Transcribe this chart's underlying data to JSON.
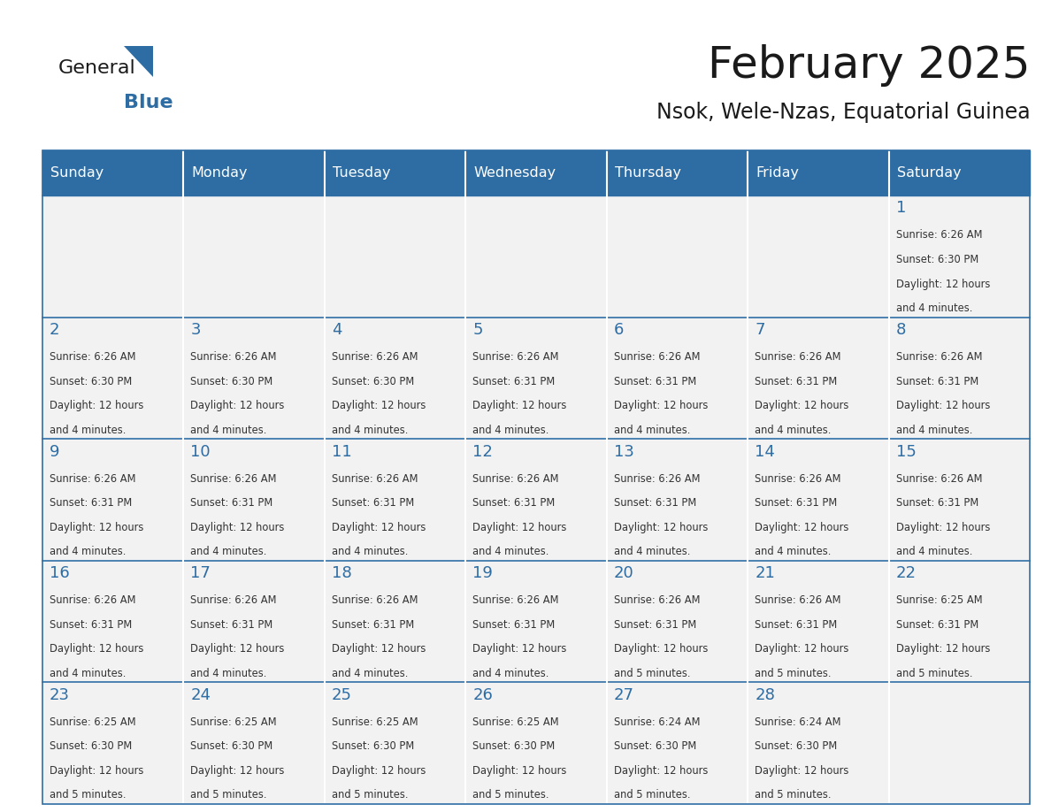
{
  "title": "February 2025",
  "subtitle": "Nsok, Wele-Nzas, Equatorial Guinea",
  "header_bg": "#2E6DA4",
  "header_text": "#FFFFFF",
  "cell_bg_light": "#F2F2F2",
  "cell_bg_white": "#FFFFFF",
  "day_number_color": "#2E6DA4",
  "text_color": "#333333",
  "line_color": "#2E6DA4",
  "days_of_week": [
    "Sunday",
    "Monday",
    "Tuesday",
    "Wednesday",
    "Thursday",
    "Friday",
    "Saturday"
  ],
  "calendar_data": [
    [
      null,
      null,
      null,
      null,
      null,
      null,
      1
    ],
    [
      2,
      3,
      4,
      5,
      6,
      7,
      8
    ],
    [
      9,
      10,
      11,
      12,
      13,
      14,
      15
    ],
    [
      16,
      17,
      18,
      19,
      20,
      21,
      22
    ],
    [
      23,
      24,
      25,
      26,
      27,
      28,
      null
    ]
  ],
  "cell_info": {
    "1": {
      "sunrise": "6:26 AM",
      "sunset": "6:30 PM",
      "daylight": "12 hours and 4 minutes."
    },
    "2": {
      "sunrise": "6:26 AM",
      "sunset": "6:30 PM",
      "daylight": "12 hours and 4 minutes."
    },
    "3": {
      "sunrise": "6:26 AM",
      "sunset": "6:30 PM",
      "daylight": "12 hours and 4 minutes."
    },
    "4": {
      "sunrise": "6:26 AM",
      "sunset": "6:30 PM",
      "daylight": "12 hours and 4 minutes."
    },
    "5": {
      "sunrise": "6:26 AM",
      "sunset": "6:31 PM",
      "daylight": "12 hours and 4 minutes."
    },
    "6": {
      "sunrise": "6:26 AM",
      "sunset": "6:31 PM",
      "daylight": "12 hours and 4 minutes."
    },
    "7": {
      "sunrise": "6:26 AM",
      "sunset": "6:31 PM",
      "daylight": "12 hours and 4 minutes."
    },
    "8": {
      "sunrise": "6:26 AM",
      "sunset": "6:31 PM",
      "daylight": "12 hours and 4 minutes."
    },
    "9": {
      "sunrise": "6:26 AM",
      "sunset": "6:31 PM",
      "daylight": "12 hours and 4 minutes."
    },
    "10": {
      "sunrise": "6:26 AM",
      "sunset": "6:31 PM",
      "daylight": "12 hours and 4 minutes."
    },
    "11": {
      "sunrise": "6:26 AM",
      "sunset": "6:31 PM",
      "daylight": "12 hours and 4 minutes."
    },
    "12": {
      "sunrise": "6:26 AM",
      "sunset": "6:31 PM",
      "daylight": "12 hours and 4 minutes."
    },
    "13": {
      "sunrise": "6:26 AM",
      "sunset": "6:31 PM",
      "daylight": "12 hours and 4 minutes."
    },
    "14": {
      "sunrise": "6:26 AM",
      "sunset": "6:31 PM",
      "daylight": "12 hours and 4 minutes."
    },
    "15": {
      "sunrise": "6:26 AM",
      "sunset": "6:31 PM",
      "daylight": "12 hours and 4 minutes."
    },
    "16": {
      "sunrise": "6:26 AM",
      "sunset": "6:31 PM",
      "daylight": "12 hours and 4 minutes."
    },
    "17": {
      "sunrise": "6:26 AM",
      "sunset": "6:31 PM",
      "daylight": "12 hours and 4 minutes."
    },
    "18": {
      "sunrise": "6:26 AM",
      "sunset": "6:31 PM",
      "daylight": "12 hours and 4 minutes."
    },
    "19": {
      "sunrise": "6:26 AM",
      "sunset": "6:31 PM",
      "daylight": "12 hours and 4 minutes."
    },
    "20": {
      "sunrise": "6:26 AM",
      "sunset": "6:31 PM",
      "daylight": "12 hours and 5 minutes."
    },
    "21": {
      "sunrise": "6:26 AM",
      "sunset": "6:31 PM",
      "daylight": "12 hours and 5 minutes."
    },
    "22": {
      "sunrise": "6:25 AM",
      "sunset": "6:31 PM",
      "daylight": "12 hours and 5 minutes."
    },
    "23": {
      "sunrise": "6:25 AM",
      "sunset": "6:30 PM",
      "daylight": "12 hours and 5 minutes."
    },
    "24": {
      "sunrise": "6:25 AM",
      "sunset": "6:30 PM",
      "daylight": "12 hours and 5 minutes."
    },
    "25": {
      "sunrise": "6:25 AM",
      "sunset": "6:30 PM",
      "daylight": "12 hours and 5 minutes."
    },
    "26": {
      "sunrise": "6:25 AM",
      "sunset": "6:30 PM",
      "daylight": "12 hours and 5 minutes."
    },
    "27": {
      "sunrise": "6:24 AM",
      "sunset": "6:30 PM",
      "daylight": "12 hours and 5 minutes."
    },
    "28": {
      "sunrise": "6:24 AM",
      "sunset": "6:30 PM",
      "daylight": "12 hours and 5 minutes."
    }
  },
  "logo_text_general": "General",
  "logo_text_blue": "Blue",
  "logo_color_general": "#1a1a1a",
  "logo_color_blue": "#2E6DA4",
  "logo_triangle_color": "#2E6DA4"
}
